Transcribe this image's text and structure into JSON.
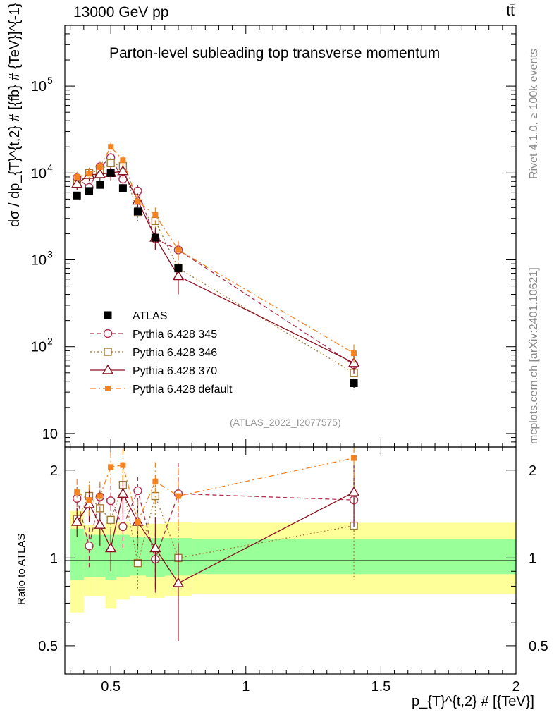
{
  "header": {
    "energy_label": "13000 GeV pp",
    "process_label": "tt̄",
    "title": "Parton-level subleading top transverse momentum",
    "analysis_tag": "(ATLAS_2022_I2077575)",
    "side_rivet": "Rivet 4.1.0, ≥ 100k events",
    "side_mcplots": "mcplots.cern.ch [arXiv:2401.10621]"
  },
  "axes": {
    "main_ylabel": "dσ / dp_{T}^{t,2} # [{fb} # {TeV}]^{-1}",
    "ratio_ylabel": "Ratio to ATLAS",
    "xlabel": "p_{T}^{t,2} # [{TeV}]",
    "x_ticks": [
      "0.5",
      "1",
      "1.5",
      "2"
    ],
    "main_y_ticks": [
      "10",
      "10^2",
      "10^3",
      "10^4",
      "10^5"
    ],
    "ratio_y_ticks": [
      "0.5",
      "1",
      "2"
    ]
  },
  "colors": {
    "atlas": "#000000",
    "p345": "#b03050",
    "p346": "#a07830",
    "p370": "#8b1020",
    "pdef": "#f58220",
    "band_inner": "#99ff99",
    "band_outer": "#ffff99"
  },
  "chart_data": {
    "type": "scatter",
    "log_y": true,
    "xlim": [
      0.33,
      2.0
    ],
    "ylim": [
      7,
      500000
    ],
    "ratio_ylim": [
      0.4,
      2.4
    ],
    "x_centers": [
      0.375,
      0.42,
      0.46,
      0.5,
      0.545,
      0.6,
      0.665,
      0.75,
      1.4
    ],
    "bin_edges": [
      0.35,
      0.4,
      0.44,
      0.48,
      0.52,
      0.57,
      0.63,
      0.7,
      0.8,
      2.0
    ],
    "legend": [
      {
        "key": "atlas",
        "label": "ATLAS"
      },
      {
        "key": "p345",
        "label": "Pythia 6.428 345"
      },
      {
        "key": "p346",
        "label": "Pythia 6.428 346"
      },
      {
        "key": "p370",
        "label": "Pythia 6.428 370"
      },
      {
        "key": "pdef",
        "label": "Pythia 6.428 default"
      }
    ],
    "series": [
      {
        "key": "atlas",
        "name": "ATLAS",
        "marker": "square-filled",
        "line": "none",
        "values": [
          5500,
          6200,
          7300,
          10000,
          6700,
          3600,
          1800,
          800,
          38
        ],
        "errors": [
          400,
          500,
          600,
          800,
          600,
          300,
          160,
          90,
          5
        ]
      },
      {
        "key": "p345",
        "name": "Pythia 6.428 345",
        "marker": "circle-open",
        "line": "dash",
        "values": [
          8800,
          6800,
          11800,
          15000,
          8500,
          6200,
          1750,
          1300,
          62
        ],
        "errors": [
          1200,
          1000,
          1600,
          2000,
          1300,
          1000,
          400,
          350,
          12
        ]
      },
      {
        "key": "p346",
        "name": "Pythia 6.428 346",
        "marker": "square-open",
        "line": "dot",
        "values": [
          7500,
          10000,
          10800,
          13000,
          12000,
          3500,
          2800,
          800,
          50
        ],
        "errors": [
          1100,
          1500,
          1500,
          2000,
          2000,
          700,
          700,
          220,
          18
        ]
      },
      {
        "key": "p370",
        "name": "Pythia 6.428 370",
        "marker": "triangle-open",
        "line": "solid",
        "values": [
          7500,
          9500,
          9700,
          10000,
          10500,
          4800,
          1800,
          650,
          65
        ],
        "errors": [
          1100,
          1500,
          1500,
          1800,
          1800,
          1000,
          500,
          250,
          16
        ]
      },
      {
        "key": "pdef",
        "name": "Pythia 6.428 default",
        "marker": "square-small-filled",
        "line": "dashdot",
        "values": [
          9000,
          9800,
          11700,
          20000,
          14000,
          4700,
          3300,
          1300,
          84
        ],
        "errors": [
          1300,
          1400,
          1600,
          2400,
          1800,
          900,
          700,
          350,
          22
        ]
      }
    ],
    "ratio_band": {
      "inner": [
        [
          0.84,
          1.26
        ],
        [
          0.86,
          1.2
        ],
        [
          0.86,
          1.2
        ],
        [
          0.84,
          1.2
        ],
        [
          0.86,
          1.2
        ],
        [
          0.87,
          1.18
        ],
        [
          0.86,
          1.17
        ],
        [
          0.87,
          1.17
        ],
        [
          0.88,
          1.16
        ]
      ],
      "outer": [
        [
          0.65,
          1.45
        ],
        [
          0.74,
          1.3
        ],
        [
          0.74,
          1.28
        ],
        [
          0.67,
          1.32
        ],
        [
          0.72,
          1.33
        ],
        [
          0.74,
          1.3
        ],
        [
          0.73,
          1.31
        ],
        [
          0.74,
          1.33
        ],
        [
          0.75,
          1.32
        ]
      ]
    },
    "ratios": {
      "p345": {
        "values": [
          1.6,
          1.1,
          1.62,
          1.57,
          1.28,
          1.7,
          0.99,
          1.66,
          1.58
        ],
        "errors": [
          0.15,
          0.17,
          0.18,
          0.2,
          0.2,
          0.2,
          0.23,
          0.45,
          0.35
        ]
      },
      "p346": {
        "values": [
          1.36,
          1.63,
          1.48,
          1.35,
          1.78,
          0.96,
          1.63,
          1.0,
          1.29
        ],
        "errors": [
          0.15,
          0.2,
          0.18,
          0.2,
          0.25,
          0.18,
          0.3,
          0.3,
          0.45
        ]
      },
      "p370": {
        "values": [
          1.33,
          1.53,
          1.3,
          1.08,
          1.66,
          1.33,
          1.08,
          0.82,
          1.68
        ],
        "errors": [
          0.15,
          0.2,
          0.2,
          0.18,
          0.25,
          0.25,
          0.3,
          0.3,
          0.4
        ]
      },
      "pdef": {
        "values": [
          1.68,
          1.58,
          1.63,
          2.05,
          2.08,
          1.33,
          1.83,
          1.63,
          2.2
        ],
        "errors": [
          0.18,
          0.2,
          0.2,
          0.25,
          0.28,
          0.25,
          0.3,
          0.4,
          0.45
        ]
      }
    }
  }
}
